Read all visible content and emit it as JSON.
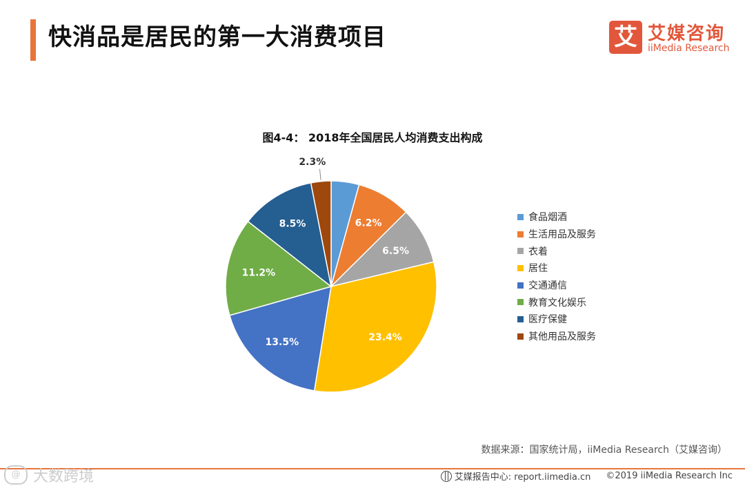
{
  "header": {
    "title": "快消品是居民的第一大消费项目",
    "logo_mark": "艾",
    "logo_cn": "艾媒咨询",
    "logo_en": "iiMedia Research"
  },
  "chart_data": {
    "type": "pie",
    "title": "图4-4： 2018年全国居民人均消费支出构成",
    "categories": [
      "食品烟酒",
      "生活用品及服务",
      "衣着",
      "居住",
      "交通通信",
      "教育文化娱乐",
      "医疗保健",
      "其他用品及服务"
    ],
    "values": [
      3.2,
      6.2,
      6.5,
      23.4,
      13.5,
      11.2,
      8.5,
      2.3
    ],
    "labels": [
      "",
      "6.2%",
      "6.5%",
      "23.4%",
      "13.5%",
      "11.2%",
      "8.5%",
      "2.3%"
    ],
    "colors": [
      "#5b9bd5",
      "#ed7d31",
      "#a5a5a5",
      "#ffc000",
      "#4472c4",
      "#70ad47",
      "#255e91",
      "#9e480e"
    ],
    "legend_position": "right"
  },
  "source": "数据来源：国家统计局，iiMedia Research（艾媒咨询）",
  "footer": {
    "watermark_symbol": "@",
    "watermark": "大数跨境",
    "center_label": "艾媒报告中心: report.iimedia.cn",
    "copyright": "©2019  iiMedia Research  Inc"
  }
}
